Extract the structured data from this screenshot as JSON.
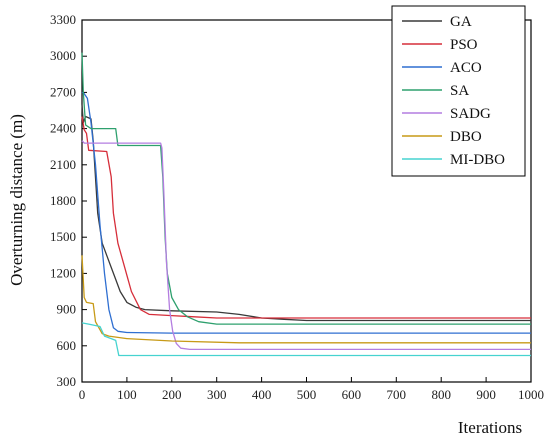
{
  "chart_data": {
    "type": "line",
    "title": "",
    "xlabel": "Iterations",
    "ylabel": "Overturning distance (m)",
    "xlim": [
      0,
      1000
    ],
    "ylim": [
      300,
      3300
    ],
    "xticks": [
      0,
      100,
      200,
      300,
      400,
      500,
      600,
      700,
      800,
      900,
      1000
    ],
    "yticks": [
      300,
      600,
      900,
      1200,
      1500,
      1800,
      2100,
      2400,
      2700,
      3000,
      3300
    ],
    "grid": false,
    "legend_position": "top-right",
    "series": [
      {
        "name": "GA",
        "color": "#3a3a3a",
        "points": [
          [
            0,
            2600
          ],
          [
            3,
            2450
          ],
          [
            8,
            2500
          ],
          [
            20,
            2480
          ],
          [
            25,
            2300
          ],
          [
            35,
            1700
          ],
          [
            45,
            1450
          ],
          [
            55,
            1350
          ],
          [
            65,
            1250
          ],
          [
            75,
            1150
          ],
          [
            85,
            1050
          ],
          [
            100,
            960
          ],
          [
            120,
            920
          ],
          [
            140,
            900
          ],
          [
            200,
            890
          ],
          [
            300,
            880
          ],
          [
            350,
            860
          ],
          [
            400,
            830
          ],
          [
            450,
            820
          ],
          [
            500,
            810
          ],
          [
            1000,
            810
          ]
        ]
      },
      {
        "name": "PSO",
        "color": "#d62e3a",
        "points": [
          [
            0,
            2500
          ],
          [
            5,
            2390
          ],
          [
            10,
            2360
          ],
          [
            15,
            2220
          ],
          [
            55,
            2210
          ],
          [
            65,
            2000
          ],
          [
            70,
            1700
          ],
          [
            80,
            1450
          ],
          [
            95,
            1250
          ],
          [
            110,
            1050
          ],
          [
            130,
            900
          ],
          [
            150,
            860
          ],
          [
            200,
            850
          ],
          [
            250,
            840
          ],
          [
            300,
            830
          ],
          [
            500,
            830
          ],
          [
            1000,
            830
          ]
        ]
      },
      {
        "name": "ACO",
        "color": "#2f6fd1",
        "points": [
          [
            0,
            2700
          ],
          [
            5,
            2690
          ],
          [
            12,
            2650
          ],
          [
            20,
            2450
          ],
          [
            30,
            2100
          ],
          [
            40,
            1600
          ],
          [
            50,
            1200
          ],
          [
            60,
            900
          ],
          [
            70,
            750
          ],
          [
            80,
            720
          ],
          [
            100,
            710
          ],
          [
            200,
            705
          ],
          [
            500,
            705
          ],
          [
            1000,
            705
          ]
        ]
      },
      {
        "name": "SA",
        "color": "#2ea06e",
        "points": [
          [
            0,
            3030
          ],
          [
            3,
            2700
          ],
          [
            8,
            2430
          ],
          [
            20,
            2400
          ],
          [
            75,
            2400
          ],
          [
            80,
            2260
          ],
          [
            175,
            2260
          ],
          [
            180,
            2000
          ],
          [
            185,
            1500
          ],
          [
            190,
            1200
          ],
          [
            200,
            1000
          ],
          [
            215,
            900
          ],
          [
            235,
            840
          ],
          [
            260,
            800
          ],
          [
            300,
            780
          ],
          [
            1000,
            780
          ]
        ]
      },
      {
        "name": "SADG",
        "color": "#b37de0",
        "points": [
          [
            0,
            2300
          ],
          [
            5,
            2280
          ],
          [
            175,
            2280
          ],
          [
            178,
            2240
          ],
          [
            182,
            1900
          ],
          [
            188,
            1300
          ],
          [
            195,
            900
          ],
          [
            202,
            720
          ],
          [
            210,
            620
          ],
          [
            220,
            580
          ],
          [
            240,
            570
          ],
          [
            1000,
            570
          ]
        ]
      },
      {
        "name": "DBO",
        "color": "#c79a17",
        "points": [
          [
            0,
            1350
          ],
          [
            5,
            1000
          ],
          [
            10,
            960
          ],
          [
            25,
            950
          ],
          [
            30,
            800
          ],
          [
            45,
            700
          ],
          [
            60,
            680
          ],
          [
            100,
            660
          ],
          [
            200,
            640
          ],
          [
            350,
            625
          ],
          [
            1000,
            625
          ]
        ]
      },
      {
        "name": "MI-DBO",
        "color": "#46d3d0",
        "points": [
          [
            0,
            790
          ],
          [
            15,
            780
          ],
          [
            40,
            760
          ],
          [
            50,
            680
          ],
          [
            65,
            660
          ],
          [
            75,
            645
          ],
          [
            82,
            520
          ],
          [
            1000,
            520
          ]
        ]
      }
    ]
  }
}
